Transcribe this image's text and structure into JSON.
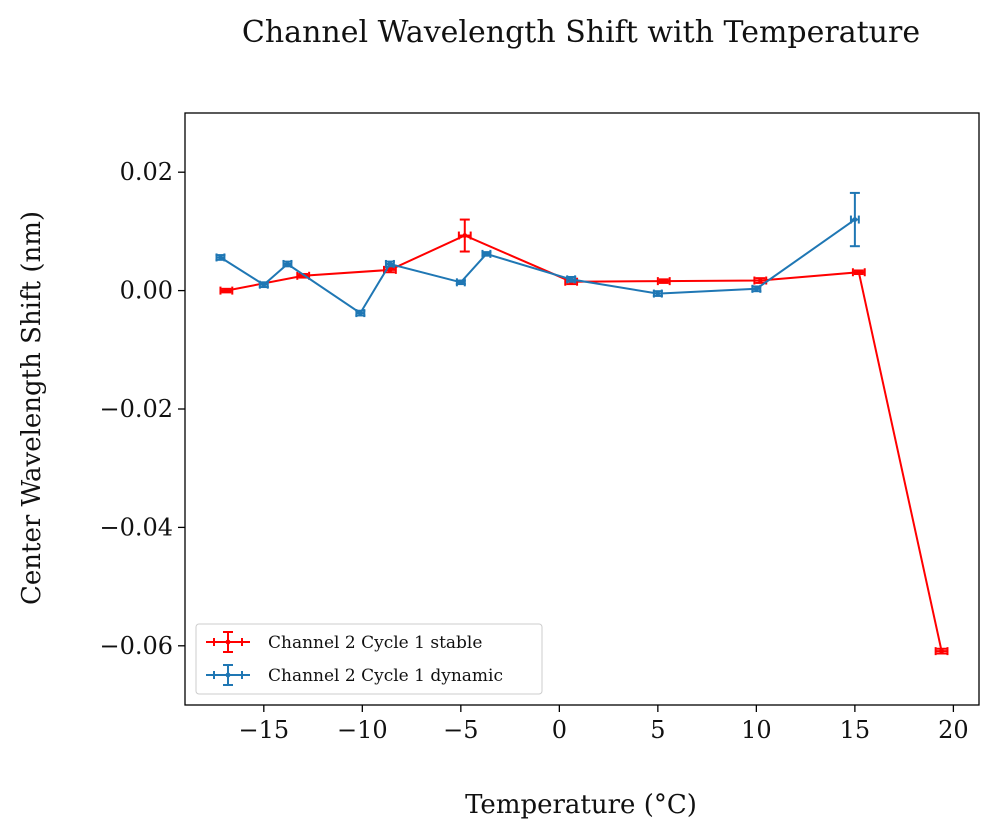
{
  "chart_data": {
    "type": "line",
    "title": "Channel Wavelength Shift with Temperature",
    "xlabel": "Temperature (°C)",
    "ylabel": "Center Wavelength Shift (nm)",
    "xlim": [
      -19,
      21.3
    ],
    "ylim": [
      -0.07,
      0.03
    ],
    "xticks": [
      -15,
      -10,
      -5,
      0,
      5,
      10,
      15,
      20
    ],
    "xtick_labels": [
      "−15",
      "−10",
      "−5",
      "0",
      "5",
      "10",
      "15",
      "20"
    ],
    "yticks": [
      -0.06,
      -0.04,
      -0.02,
      0.0,
      0.02
    ],
    "ytick_labels": [
      "−0.06",
      "−0.04",
      "−0.02",
      "0.00",
      "0.02"
    ],
    "grid": false,
    "legend_position": "lower-left",
    "series": [
      {
        "name": "Channel 2 Cycle 1 stable",
        "color": "#ff0000",
        "x": [
          -16.9,
          -13.0,
          -8.6,
          -4.8,
          0.6,
          5.3,
          10.2,
          15.2,
          19.4
        ],
        "y": [
          0.0,
          0.0025,
          0.0035,
          0.0093,
          0.0015,
          0.0016,
          0.0017,
          0.0031,
          -0.0609
        ],
        "yerr": [
          0.0003,
          0.0003,
          0.0004,
          0.0027,
          0.0004,
          0.0003,
          0.0004,
          0.0003,
          0.0004
        ],
        "xerr": [
          0.3,
          0.3,
          0.3,
          0.3,
          0.3,
          0.3,
          0.3,
          0.3,
          0.3
        ]
      },
      {
        "name": "Channel 2 Cycle 1 dynamic",
        "color": "#1f77b4",
        "x": [
          -17.2,
          -15.0,
          -13.8,
          -10.1,
          -8.6,
          -5.0,
          -3.7,
          0.6,
          5.0,
          10.0,
          15.0
        ],
        "y": [
          0.0056,
          0.001,
          0.0045,
          -0.0038,
          0.0045,
          0.0014,
          0.0062,
          0.0019,
          -0.0005,
          0.0003,
          0.012
        ],
        "yerr": [
          0.0004,
          0.0004,
          0.0004,
          0.0004,
          0.0004,
          0.0003,
          0.0003,
          0.0004,
          0.0004,
          0.0004,
          0.0045
        ],
        "xerr": [
          0.2,
          0.2,
          0.2,
          0.2,
          0.2,
          0.2,
          0.2,
          0.2,
          0.2,
          0.2,
          0.2
        ]
      }
    ]
  }
}
